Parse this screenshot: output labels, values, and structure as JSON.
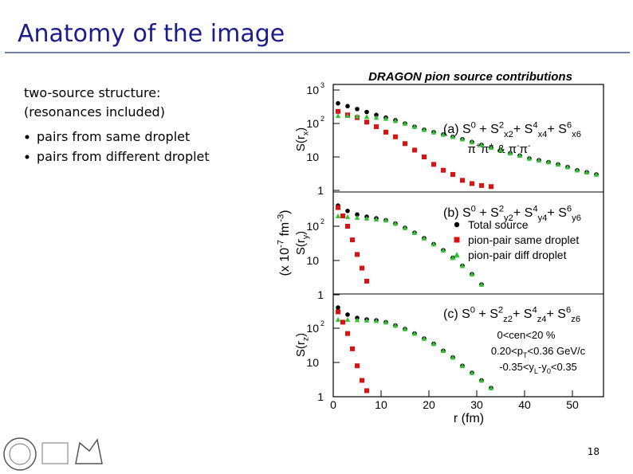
{
  "slide": {
    "title": "Anatomy of the image",
    "text": [
      "two-source structure:",
      "(resonances included)"
    ],
    "bullets": [
      "pairs from same droplet",
      "pairs from different droplet"
    ],
    "page_number": "18"
  },
  "chart_data": {
    "type": "scatter",
    "title": "DRAGON pion source contributions",
    "xlabel": "r (fm)",
    "ylabel": [
      {
        "text": "(x 10"
      },
      {
        "text": "-7",
        "shift": "sup"
      },
      {
        "text": " fm"
      },
      {
        "text": "-3",
        "shift": "sup"
      },
      {
        "text": ")"
      }
    ],
    "xlim": [
      0,
      56.5
    ],
    "xticks": [
      0,
      10,
      20,
      30,
      40,
      50
    ],
    "log_y": true,
    "legend_panel": 1,
    "series_styles": [
      {
        "name": "Total source",
        "color": "#000000",
        "marker": "circle"
      },
      {
        "name": "pion-pair same droplet",
        "color": "#e01010",
        "marker": "square"
      },
      {
        "name": "pion-pair diff droplet",
        "color": "#2fc42f",
        "marker": "triangle"
      }
    ],
    "panels": [
      {
        "label": [
          {
            "text": "(a) S"
          },
          {
            "text": "0",
            "shift": "sup"
          },
          {
            "text": " + S"
          },
          {
            "text": "2",
            "shift": "sup"
          },
          {
            "text": "x2",
            "shift": "sub"
          },
          {
            "text": "+ S"
          },
          {
            "text": "4",
            "shift": "sup"
          },
          {
            "text": "x4",
            "shift": "sub"
          },
          {
            "text": "+ S"
          },
          {
            "text": "6",
            "shift": "sup"
          },
          {
            "text": "x6",
            "shift": "sub"
          }
        ],
        "ylabel": [
          {
            "text": "S(r"
          },
          {
            "text": "x",
            "shift": "sub"
          },
          {
            "text": ")"
          }
        ],
        "ylim": [
          1,
          1000
        ],
        "yticks": [
          {
            "value": 1000,
            "label": "10",
            "exp": "3"
          },
          {
            "value": 100,
            "label": "10",
            "exp": "2"
          },
          {
            "value": 10,
            "label": "10"
          },
          1
        ],
        "annotations": [
          [
            {
              "text": "π"
            },
            {
              "text": "+",
              "shift": "sup"
            },
            {
              "text": "π"
            },
            {
              "text": "+",
              "shift": "sup"
            },
            {
              "text": " & π"
            },
            {
              "text": "-",
              "shift": "sup"
            },
            {
              "text": "π"
            },
            {
              "text": "-",
              "shift": "sup"
            }
          ]
        ],
        "series": [
          {
            "x": [
              1,
              3,
              5,
              7,
              9,
              11,
              13,
              15,
              17,
              19,
              21,
              23,
              25,
              27,
              29,
              31,
              33,
              35,
              37,
              39,
              41,
              43,
              45,
              47,
              49,
              51,
              53,
              55
            ],
            "values": [
              400,
              330,
              270,
              220,
              180,
              150,
              125,
              100,
              80,
              65,
              55,
              47,
              40,
              34,
              28,
              23,
              19,
              16,
              13,
              11,
              9,
              8,
              7,
              6,
              5,
              4,
              3.5,
              3
            ]
          },
          {
            "x": [
              1,
              3,
              5,
              7,
              9,
              11,
              13,
              15,
              17,
              19,
              21,
              23,
              25,
              27,
              29,
              31,
              33
            ],
            "values": [
              230,
              180,
              150,
              110,
              80,
              55,
              40,
              25,
              16,
              10,
              6,
              4,
              3,
              2,
              1.6,
              1.4,
              1.3
            ]
          },
          {
            "x": [
              1,
              3,
              5,
              7,
              9,
              11,
              13,
              15,
              17,
              19,
              21,
              23,
              25,
              27,
              29,
              31,
              33,
              35,
              37,
              39,
              41,
              43,
              45,
              47,
              49,
              51,
              53,
              55
            ],
            "values": [
              170,
              170,
              165,
              160,
              150,
              140,
              120,
              100,
              80,
              65,
              55,
              47,
              40,
              34,
              28,
              23,
              19,
              16,
              13,
              11,
              9,
              8,
              7,
              6,
              5,
              4,
              3.5,
              3
            ]
          }
        ]
      },
      {
        "label": [
          {
            "text": "(b) S"
          },
          {
            "text": "0",
            "shift": "sup"
          },
          {
            "text": " + S"
          },
          {
            "text": "2",
            "shift": "sup"
          },
          {
            "text": "y2",
            "shift": "sub"
          },
          {
            "text": "+ S"
          },
          {
            "text": "4",
            "shift": "sup"
          },
          {
            "text": "y4",
            "shift": "sub"
          },
          {
            "text": "+ S"
          },
          {
            "text": "6",
            "shift": "sup"
          },
          {
            "text": "y6",
            "shift": "sub"
          }
        ],
        "ylabel": [
          {
            "text": "S(r"
          },
          {
            "text": "y",
            "shift": "sub"
          },
          {
            "text": ")"
          }
        ],
        "ylim": [
          1,
          1000
        ],
        "yticks": [
          {
            "value": 100,
            "label": "10",
            "exp": "2"
          },
          {
            "value": 10,
            "label": "10"
          },
          1
        ],
        "annotations": [],
        "series": [
          {
            "x": [
              1,
              3,
              5,
              7,
              9,
              11,
              13,
              15,
              17,
              19,
              21,
              23,
              25,
              27,
              29,
              31
            ],
            "values": [
              400,
              280,
              220,
              190,
              170,
              150,
              120,
              90,
              65,
              45,
              30,
              20,
              12,
              7,
              4,
              2
            ]
          },
          {
            "x": [
              1,
              2,
              3,
              4,
              5,
              6,
              7
            ],
            "values": [
              350,
              200,
              100,
              40,
              15,
              6,
              2.5
            ]
          },
          {
            "x": [
              1,
              3,
              5,
              7,
              9,
              11,
              13,
              15,
              17,
              19,
              21,
              23,
              25,
              27,
              29,
              31
            ],
            "values": [
              200,
              190,
              180,
              170,
              160,
              150,
              120,
              90,
              65,
              45,
              30,
              20,
              12,
              7,
              4,
              2
            ]
          }
        ]
      },
      {
        "label": [
          {
            "text": "(c) S"
          },
          {
            "text": "0",
            "shift": "sup"
          },
          {
            "text": " + S"
          },
          {
            "text": "2",
            "shift": "sup"
          },
          {
            "text": "z2",
            "shift": "sub"
          },
          {
            "text": "+ S"
          },
          {
            "text": "4",
            "shift": "sup"
          },
          {
            "text": "z4",
            "shift": "sub"
          },
          {
            "text": "+ S"
          },
          {
            "text": "6",
            "shift": "sup"
          },
          {
            "text": "z6",
            "shift": "sub"
          }
        ],
        "ylabel": [
          {
            "text": "S(r"
          },
          {
            "text": "z",
            "shift": "sub"
          },
          {
            "text": ")"
          }
        ],
        "ylim": [
          1,
          1000
        ],
        "yticks": [
          {
            "value": 100,
            "label": "10",
            "exp": "2"
          },
          {
            "value": 10,
            "label": "10"
          },
          1
        ],
        "annotations": [
          [
            {
              "text": "0<cen<20 %"
            }
          ],
          [
            {
              "text": "0.20<p"
            },
            {
              "text": "T",
              "shift": "sub"
            },
            {
              "text": "<0.36 GeV/c"
            }
          ],
          [
            {
              "text": "-0.35<y"
            },
            {
              "text": "L",
              "shift": "sub"
            },
            {
              "text": "-y"
            },
            {
              "text": "0",
              "shift": "sub"
            },
            {
              "text": "<0.35"
            }
          ]
        ],
        "series": [
          {
            "x": [
              1,
              3,
              5,
              7,
              9,
              11,
              13,
              15,
              17,
              19,
              21,
              23,
              25,
              27,
              29,
              31,
              33
            ],
            "values": [
              400,
              250,
              200,
              180,
              170,
              150,
              120,
              95,
              70,
              50,
              35,
              22,
              14,
              8,
              5,
              3,
              1.8
            ]
          },
          {
            "x": [
              1,
              2,
              3,
              4,
              5,
              6,
              7
            ],
            "values": [
              300,
              150,
              70,
              25,
              8,
              3,
              1.5
            ]
          },
          {
            "x": [
              1,
              3,
              5,
              7,
              9,
              11,
              13,
              15,
              17,
              19,
              21,
              23,
              25,
              27,
              29,
              31,
              33
            ],
            "values": [
              180,
              180,
              175,
              170,
              165,
              150,
              120,
              95,
              70,
              50,
              35,
              22,
              14,
              8,
              5,
              3,
              1.8
            ]
          }
        ]
      }
    ]
  }
}
